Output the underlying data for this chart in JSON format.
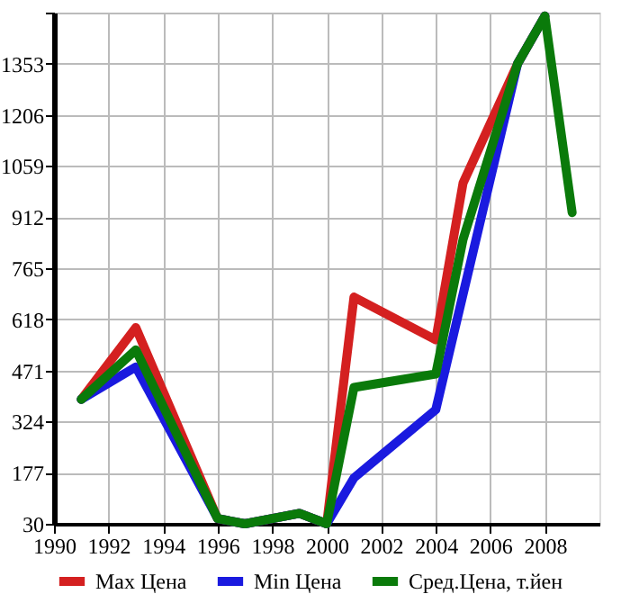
{
  "chart_data": {
    "type": "line",
    "x": [
      1991,
      1993,
      1996,
      1997,
      1999,
      2000,
      2001,
      2004,
      2005,
      2007,
      2008,
      2009
    ],
    "series": [
      {
        "name": "Max Цена",
        "color": "#d42020",
        "values": [
          388,
          594,
          45,
          30,
          60,
          30,
          682,
          559,
          1010,
          1353,
          1490,
          null
        ]
      },
      {
        "name": "Min Цена",
        "color": "#1a1adf",
        "values": [
          388,
          481,
          45,
          30,
          60,
          30,
          162,
          358,
          690,
          1353,
          1490,
          null
        ]
      },
      {
        "name": "Сред.Цена, т.йен",
        "color": "#0a7a0a",
        "values": [
          388,
          530,
          45,
          30,
          60,
          30,
          422,
          461,
          848,
          1353,
          1490,
          925
        ]
      }
    ],
    "xlim": [
      1990,
      2010
    ],
    "xticks": [
      1990,
      1992,
      1994,
      1996,
      1998,
      2000,
      2002,
      2004,
      2006,
      2008
    ],
    "ylim": [
      30,
      1500
    ],
    "yticks": [
      30,
      177,
      324,
      471,
      618,
      765,
      912,
      1059,
      1206,
      1353,
      {
        "value": 1500,
        "label": null
      }
    ],
    "grid": true,
    "legend": "bottom",
    "marker": "none",
    "line_style": "solid"
  }
}
